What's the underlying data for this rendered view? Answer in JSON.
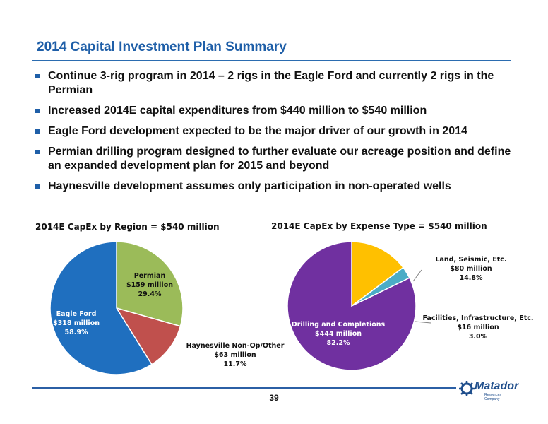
{
  "slide": {
    "title": "2014 Capital Investment Plan Summary",
    "page_number": "39",
    "accent_color": "#1f5fa8"
  },
  "bullets": [
    "Continue 3-rig program in 2014 – 2 rigs in the Eagle Ford and currently 2 rigs in the Permian",
    "Increased 2014E capital expenditures from $440 million to $540 million",
    "Eagle Ford development expected to be the major driver of our growth in 2014",
    "Permian drilling program designed to further evaluate our acreage position and define an expanded development plan for 2015 and beyond",
    "Haynesville development assumes only participation in non-operated wells"
  ],
  "logo": {
    "name": "Matador",
    "tagline": "Resources Company",
    "icon": "gear-icon"
  },
  "chart_data": [
    {
      "type": "pie",
      "title": "2014E CapEx by Region = $540 million",
      "slices": [
        {
          "name": "Permian",
          "amount": "$159 million",
          "percent": "29.4%",
          "value": 29.4,
          "color": "#9bbb59"
        },
        {
          "name": "Haynesville Non-Op/Other",
          "amount": "$63 million",
          "percent": "11.7%",
          "value": 11.7,
          "color": "#c0504d"
        },
        {
          "name": "Eagle Ford",
          "amount": "$318 million",
          "percent": "58.9%",
          "value": 58.9,
          "color": "#1f6fbf"
        }
      ]
    },
    {
      "type": "pie",
      "title": "2014E CapEx by Expense Type = $540 million",
      "slices": [
        {
          "name": "Land, Seismic, Etc.",
          "amount": "$80 million",
          "percent": "14.8%",
          "value": 14.8,
          "color": "#ffc000"
        },
        {
          "name": "Facilities, Infrastructure, Etc.",
          "amount": "$16 million",
          "percent": "3.0%",
          "value": 3.0,
          "color": "#4bacc6"
        },
        {
          "name": "Drilling and Completions",
          "amount": "$444 million",
          "percent": "82.2%",
          "value": 82.2,
          "color": "#7030a0"
        }
      ]
    }
  ]
}
